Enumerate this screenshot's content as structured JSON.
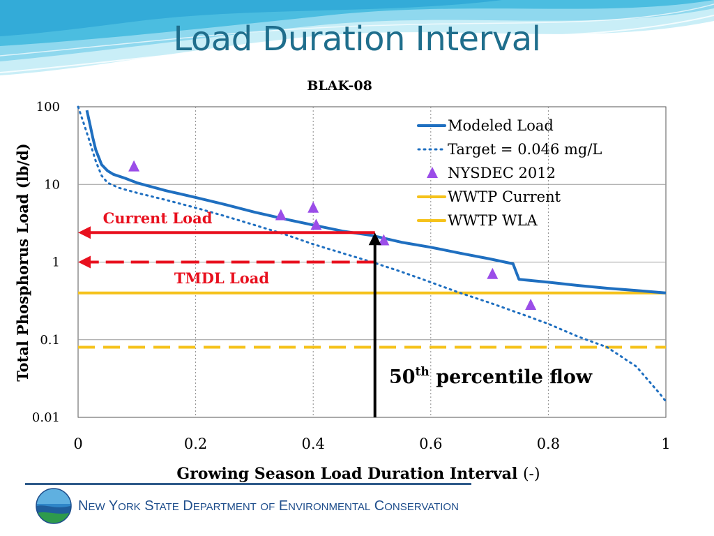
{
  "slide": {
    "title": "Load Duration Interval",
    "agency_words": [
      "New",
      "York",
      "State",
      "Department",
      "of",
      "Environmental",
      "Conservation"
    ]
  },
  "colors": {
    "title": "#1f6e8c",
    "modeled": "#1f6fc0",
    "target": "#1f6fc0",
    "nysdec": "#9b4de8",
    "wwtp": "#f5c21b",
    "annotation": "#e8101e",
    "agency": "#1f4e8c"
  },
  "chart_data": {
    "type": "line",
    "title": "BLAK-08",
    "xlabel_main": "Growing Season Load Duration Interval",
    "xlabel_unit": "(-)",
    "ylabel": "Total Phosphorus Load (lb/d)",
    "xlim": [
      0,
      1
    ],
    "ylim": [
      0.01,
      100
    ],
    "y_scale": "log",
    "grid": "vertical dotted, horizontal solid",
    "x_ticks": [
      "0",
      "0.2",
      "0.4",
      "0.6",
      "0.8",
      "1"
    ],
    "x_tick_values": [
      0,
      0.2,
      0.4,
      0.6,
      0.8,
      1
    ],
    "y_ticks": [
      "100",
      "10",
      "1",
      "0.1",
      "0.01"
    ],
    "y_tick_values": [
      100,
      10,
      1,
      0.1,
      0.01
    ],
    "legend_position": "top-right",
    "series": [
      {
        "name": "Modeled Load",
        "style": "solid",
        "x": [
          0.015,
          0.02,
          0.025,
          0.03,
          0.04,
          0.05,
          0.06,
          0.08,
          0.1,
          0.15,
          0.2,
          0.25,
          0.3,
          0.35,
          0.4,
          0.45,
          0.5,
          0.55,
          0.6,
          0.65,
          0.7,
          0.74,
          0.75,
          0.8,
          0.85,
          0.9,
          0.95,
          1.0
        ],
        "y": [
          90,
          60,
          40,
          28,
          18,
          15,
          13.5,
          12,
          10.5,
          8.3,
          6.8,
          5.5,
          4.4,
          3.6,
          3.0,
          2.5,
          2.2,
          1.8,
          1.55,
          1.3,
          1.1,
          0.95,
          0.6,
          0.55,
          0.5,
          0.46,
          0.43,
          0.4
        ]
      },
      {
        "name": "Target = 0.046 mg/L",
        "style": "dotted",
        "x": [
          0.0,
          0.01,
          0.02,
          0.03,
          0.04,
          0.05,
          0.07,
          0.1,
          0.15,
          0.2,
          0.25,
          0.3,
          0.35,
          0.4,
          0.45,
          0.5,
          0.55,
          0.6,
          0.65,
          0.7,
          0.75,
          0.8,
          0.85,
          0.9,
          0.95,
          0.97,
          0.99,
          1.0
        ],
        "y": [
          100,
          60,
          35,
          20,
          13,
          10.5,
          9,
          7.8,
          6.3,
          5.0,
          3.9,
          3.0,
          2.3,
          1.7,
          1.3,
          1.0,
          0.75,
          0.55,
          0.4,
          0.3,
          0.22,
          0.16,
          0.11,
          0.08,
          0.045,
          0.03,
          0.02,
          0.016
        ]
      },
      {
        "name": "NYSDEC 2012",
        "style": "marker",
        "x": [
          0.095,
          0.345,
          0.4,
          0.405,
          0.52,
          0.705,
          0.77
        ],
        "y": [
          17,
          4.0,
          5.0,
          3.0,
          1.9,
          0.7,
          0.28
        ]
      },
      {
        "name": "WWTP Current",
        "style": "solid",
        "x": [
          0,
          1
        ],
        "y": [
          0.4,
          0.4
        ]
      },
      {
        "name": "WWTP WLA",
        "style": "dashed",
        "x": [
          0,
          1
        ],
        "y": [
          0.08,
          0.08
        ]
      }
    ],
    "annotations": {
      "current_load": {
        "label": "Current Load",
        "x_from": 0.505,
        "x_to": 0.0,
        "y": 2.4
      },
      "tmdl_load": {
        "label": "TMDL Load",
        "x_from": 0.505,
        "x_to": 0.0,
        "y": 1.0
      },
      "percentile_flow": {
        "label_base": "50",
        "label_sup": "th",
        "label_rest": "percentile flow",
        "x": 0.505,
        "y_from": 0.01,
        "y_to": 2.4
      }
    }
  }
}
